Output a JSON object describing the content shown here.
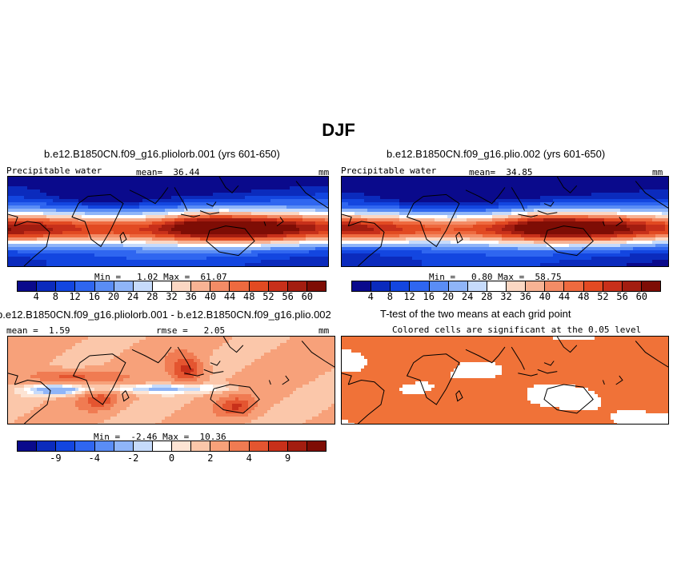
{
  "figure": {
    "title": "DJF"
  },
  "palette": {
    "precip": [
      "#0a0a8c",
      "#0b2bbd",
      "#1346e0",
      "#2f66f0",
      "#5a8df5",
      "#8fb5f8",
      "#c6dbfb",
      "#ffffff",
      "#fbd7c3",
      "#f7b394",
      "#f38c66",
      "#ee6a3f",
      "#e24a22",
      "#c8301a",
      "#a31d10",
      "#7e0d05"
    ],
    "diff": [
      "#0a0a8c",
      "#0b2bbd",
      "#1346e0",
      "#2f66f0",
      "#5a8df5",
      "#8fb5f8",
      "#c6dbfb",
      "#ffffff",
      "#fde4d4",
      "#fbc7aa",
      "#f7a17a",
      "#f07b52",
      "#e45530",
      "#c8301a",
      "#a31d10",
      "#7e0d05"
    ],
    "ttest": "#f07238"
  },
  "panels": {
    "top_left": {
      "title": "b.e12.B1850CN.f09_g16.pliolorb.001 (yrs 601-650)",
      "variable": "Precipitable water",
      "mean_label": "mean=  36.44",
      "units": "mm",
      "minmax": "Min =   1.02 Max =  61.07"
    },
    "top_right": {
      "title": "b.e12.B1850CN.f09_g16.plio.002 (yrs 601-650)",
      "variable": "Precipitable water",
      "mean_label": "mean=  34.85",
      "units": "mm",
      "minmax": "Min =   0.80 Max =  58.75"
    },
    "bottom_left": {
      "title": "b.e12.B1850CN.f09_g16.pliolorb.001 - b.e12.B1850CN.f09_g16.plio.002",
      "mean_label": "mean =  1.59",
      "rmse_label": "rmse =   2.05",
      "units": "mm",
      "minmax": "Min =  -2.46 Max =  10.36"
    },
    "bottom_right": {
      "title": "T-test of the two means at each grid point",
      "subtitle": "Colored cells are significant at the 0.05 level"
    }
  },
  "chart_data": [
    {
      "type": "heatmap",
      "panel": "top_left",
      "colorbar_levels": [
        "4",
        "8",
        "12",
        "16",
        "20",
        "24",
        "28",
        "32",
        "36",
        "40",
        "44",
        "48",
        "52",
        "56",
        "60"
      ],
      "colorbar_bins": 16,
      "mean": 36.44,
      "min": 1.02,
      "max": 61.07
    },
    {
      "type": "heatmap",
      "panel": "top_right",
      "colorbar_levels": [
        "4",
        "8",
        "12",
        "16",
        "20",
        "24",
        "28",
        "32",
        "36",
        "40",
        "44",
        "48",
        "52",
        "56",
        "60"
      ],
      "colorbar_bins": 16,
      "mean": 34.85,
      "min": 0.8,
      "max": 58.75
    },
    {
      "type": "heatmap",
      "panel": "bottom_left",
      "colorbar_levels": [
        "-9",
        "-4",
        "-2",
        "0",
        "2",
        "4",
        "9"
      ],
      "colorbar_bins": 16,
      "mean": 1.59,
      "rmse": 2.05,
      "min": -2.46,
      "max": 10.36
    },
    {
      "type": "heatmap",
      "panel": "bottom_right",
      "significance_level": 0.05
    }
  ]
}
